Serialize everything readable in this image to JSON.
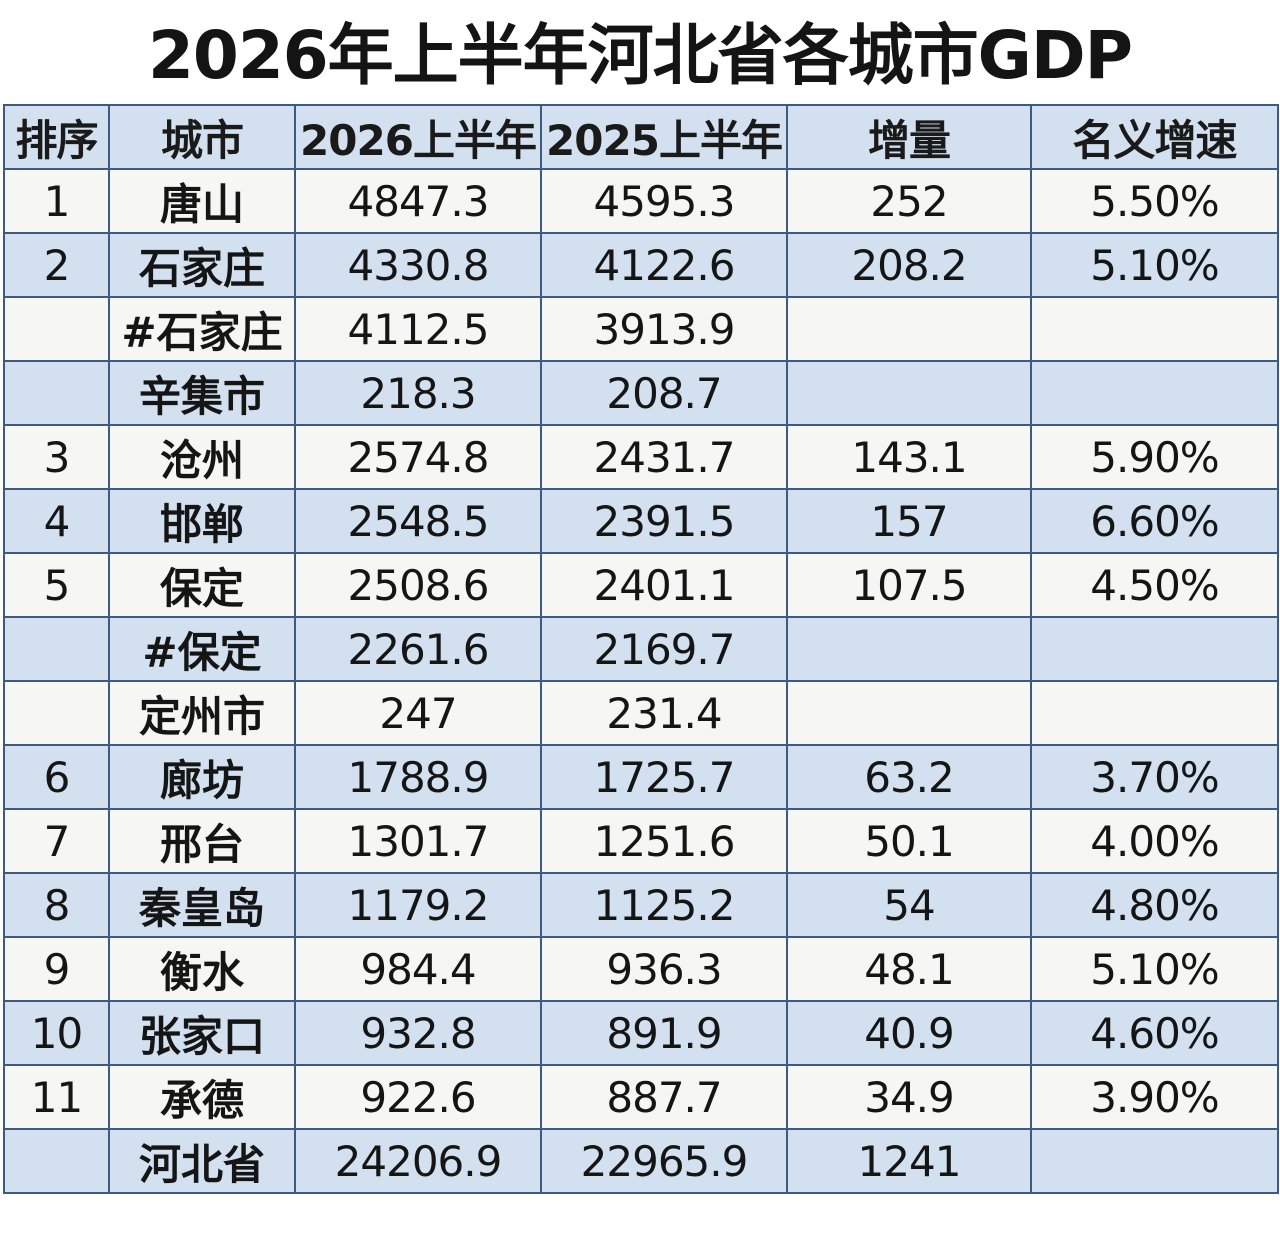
{
  "title": "2026年上半年河北省各城市GDP",
  "headers": {
    "rank": "排序",
    "city": "城市",
    "h1_2026": "2026上半年",
    "h1_2025": "2025上半年",
    "increase": "增量",
    "growth": "名义增速"
  },
  "rows": [
    {
      "rank": "1",
      "city": "唐山",
      "h1_2026": "4847.3",
      "h1_2025": "4595.3",
      "increase": "252",
      "growth": "5.50%"
    },
    {
      "rank": "2",
      "city": "石家庄",
      "h1_2026": "4330.8",
      "h1_2025": "4122.6",
      "increase": "208.2",
      "growth": "5.10%"
    },
    {
      "rank": "",
      "city": "#石家庄",
      "h1_2026": "4112.5",
      "h1_2025": "3913.9",
      "increase": "",
      "growth": ""
    },
    {
      "rank": "",
      "city": "辛集市",
      "h1_2026": "218.3",
      "h1_2025": "208.7",
      "increase": "",
      "growth": ""
    },
    {
      "rank": "3",
      "city": "沧州",
      "h1_2026": "2574.8",
      "h1_2025": "2431.7",
      "increase": "143.1",
      "growth": "5.90%"
    },
    {
      "rank": "4",
      "city": "邯郸",
      "h1_2026": "2548.5",
      "h1_2025": "2391.5",
      "increase": "157",
      "growth": "6.60%"
    },
    {
      "rank": "5",
      "city": "保定",
      "h1_2026": "2508.6",
      "h1_2025": "2401.1",
      "increase": "107.5",
      "growth": "4.50%"
    },
    {
      "rank": "",
      "city": "#保定",
      "h1_2026": "2261.6",
      "h1_2025": "2169.7",
      "increase": "",
      "growth": ""
    },
    {
      "rank": "",
      "city": "定州市",
      "h1_2026": "247",
      "h1_2025": "231.4",
      "increase": "",
      "growth": ""
    },
    {
      "rank": "6",
      "city": "廊坊",
      "h1_2026": "1788.9",
      "h1_2025": "1725.7",
      "increase": "63.2",
      "growth": "3.70%"
    },
    {
      "rank": "7",
      "city": "邢台",
      "h1_2026": "1301.7",
      "h1_2025": "1251.6",
      "increase": "50.1",
      "growth": "4.00%"
    },
    {
      "rank": "8",
      "city": "秦皇岛",
      "h1_2026": "1179.2",
      "h1_2025": "1125.2",
      "increase": "54",
      "growth": "4.80%"
    },
    {
      "rank": "9",
      "city": "衡水",
      "h1_2026": "984.4",
      "h1_2025": "936.3",
      "increase": "48.1",
      "growth": "5.10%"
    },
    {
      "rank": "10",
      "city": "张家口",
      "h1_2026": "932.8",
      "h1_2025": "891.9",
      "increase": "40.9",
      "growth": "4.60%"
    },
    {
      "rank": "11",
      "city": "承德",
      "h1_2026": "922.6",
      "h1_2025": "887.7",
      "increase": "34.9",
      "growth": "3.90%"
    },
    {
      "rank": "",
      "city": "河北省",
      "h1_2026": "24206.9",
      "h1_2025": "22965.9",
      "increase": "1241",
      "growth": ""
    }
  ],
  "colors": {
    "header_bg": "#d2e0f0",
    "row_blue": "#d2e0f0",
    "row_white": "#f6f6f4",
    "border": "#3d5a80",
    "text": "#141414"
  }
}
